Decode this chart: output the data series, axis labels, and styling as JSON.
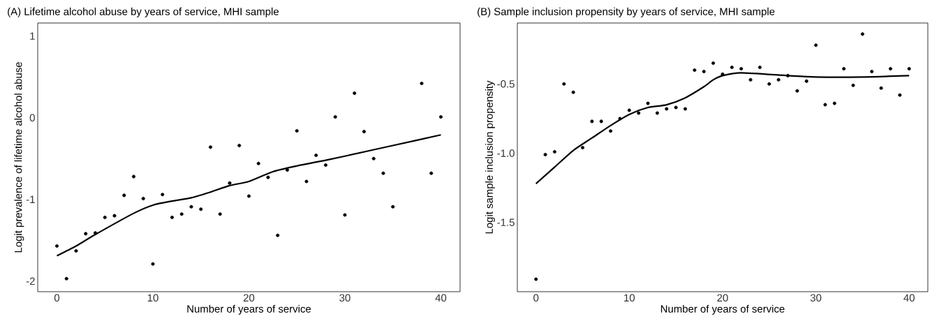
{
  "chart_data": [
    {
      "type": "scatter",
      "title": "(A) Lifetime alcohol abuse by years of service, MHI sample",
      "xlabel": "Number of years of service",
      "ylabel": "Logit prevalence of lifetime alcohol abuse",
      "xlim": [
        -2,
        42
      ],
      "ylim": [
        -2.13,
        1.16
      ],
      "xticks": [
        0,
        10,
        20,
        30,
        40
      ],
      "yticks": [
        -2,
        -1,
        0,
        1
      ],
      "series": [
        {
          "marker": "circle",
          "color": "#000000",
          "x": [
            0,
            1,
            2,
            3,
            4,
            5,
            6,
            7,
            8,
            9,
            10,
            11,
            12,
            13,
            14,
            15,
            16,
            17,
            18,
            19,
            20,
            21,
            22,
            23,
            24,
            25,
            26,
            27,
            28,
            29,
            30,
            31,
            32,
            33,
            34,
            35,
            38,
            39,
            40
          ],
          "values": [
            -1.57,
            -1.97,
            -1.63,
            -1.42,
            -1.41,
            -1.22,
            -1.2,
            -0.95,
            -0.72,
            -0.99,
            -1.79,
            -0.94,
            -1.22,
            -1.18,
            -1.09,
            -1.12,
            -0.36,
            -1.18,
            -0.8,
            -0.34,
            -0.96,
            -0.56,
            -0.73,
            -1.44,
            -0.64,
            -0.16,
            -0.78,
            -0.46,
            -0.58,
            0.01,
            -1.19,
            0.3,
            -0.17,
            -0.5,
            -0.68,
            -1.09,
            0.42,
            -0.68,
            0.01
          ]
        },
        {
          "type": "line",
          "marker": "none",
          "color": "#000000",
          "x": [
            0,
            2,
            4,
            8,
            10,
            12,
            14,
            16,
            18,
            20,
            22.5,
            25,
            28,
            30,
            35,
            40
          ],
          "values": [
            -1.69,
            -1.57,
            -1.43,
            -1.17,
            -1.07,
            -1.02,
            -0.98,
            -0.91,
            -0.83,
            -0.78,
            -0.66,
            -0.59,
            -0.52,
            -0.47,
            -0.34,
            -0.21
          ]
        }
      ]
    },
    {
      "type": "scatter",
      "title": "(B) Sample inclusion propensity by years of service, MHI sample",
      "xlabel": "Number of years of service",
      "ylabel": "Logit sample inclusion propensity",
      "xlim": [
        -2,
        42
      ],
      "ylim": [
        -2.0,
        -0.06
      ],
      "xticks": [
        0,
        10,
        20,
        30,
        40
      ],
      "yticks": [
        -1.5,
        {
          "value": -1.0,
          "label": "-1.0"
        },
        -0.5
      ],
      "series": [
        {
          "marker": "circle",
          "color": "#000000",
          "x": [
            0,
            1,
            2,
            3,
            4,
            5,
            6,
            7,
            8,
            9,
            10,
            11,
            12,
            13,
            14,
            15,
            16,
            17,
            18,
            19,
            20,
            21,
            22,
            23,
            24,
            25,
            26,
            27,
            28,
            29,
            30,
            31,
            32,
            33,
            34,
            35,
            36,
            37,
            38,
            39,
            40
          ],
          "values": [
            -1.91,
            -1.01,
            -0.99,
            -0.5,
            -0.56,
            -0.96,
            -0.77,
            -0.77,
            -0.84,
            -0.75,
            -0.69,
            -0.71,
            -0.64,
            -0.71,
            -0.68,
            -0.67,
            -0.68,
            -0.4,
            -0.41,
            -0.35,
            -0.43,
            -0.38,
            -0.39,
            -0.47,
            -0.38,
            -0.5,
            -0.47,
            -0.44,
            -0.55,
            -0.48,
            -0.22,
            -0.65,
            -0.64,
            -0.39,
            -0.51,
            -0.14,
            -0.41,
            -0.53,
            -0.39,
            -0.58,
            -0.39
          ]
        },
        {
          "type": "line",
          "marker": "none",
          "color": "#000000",
          "x": [
            0,
            2,
            4,
            6,
            8,
            10,
            12,
            14,
            16,
            18,
            19,
            20,
            22,
            27,
            30,
            35,
            40
          ],
          "values": [
            -1.22,
            -1.1,
            -0.98,
            -0.89,
            -0.8,
            -0.72,
            -0.67,
            -0.65,
            -0.6,
            -0.52,
            -0.47,
            -0.44,
            -0.42,
            -0.44,
            -0.45,
            -0.45,
            -0.44
          ]
        }
      ]
    }
  ]
}
